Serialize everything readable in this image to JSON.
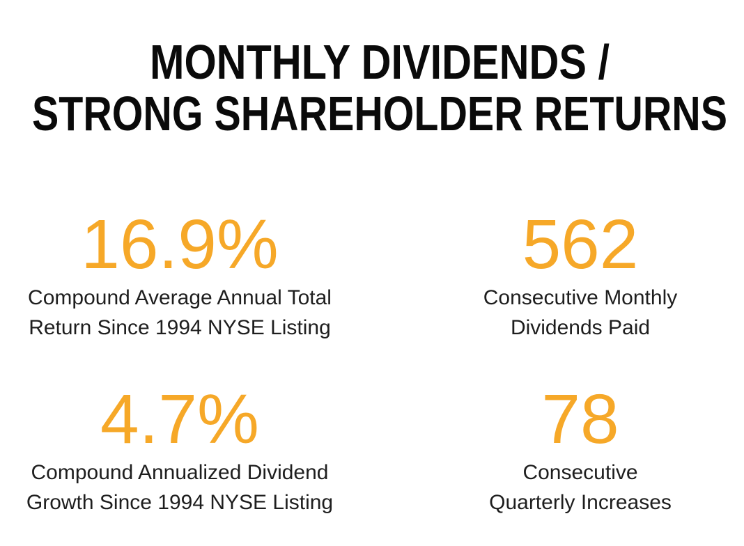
{
  "header": {
    "title": [
      "MONTHLY DIVIDENDS /",
      "STRONG SHAREHOLDER RETURNS"
    ]
  },
  "stats": [
    {
      "value": "16.9%",
      "label": [
        "Compound Average Annual Total",
        "Return Since 1994 NYSE Listing"
      ]
    },
    {
      "value": "562",
      "label": [
        "Consecutive Monthly",
        "Dividends Paid"
      ]
    },
    {
      "value": "4.7%",
      "label": [
        "Compound Annualized Dividend",
        "Growth Since 1994 NYSE Listing"
      ]
    },
    {
      "value": "78",
      "label": [
        "Consecutive",
        "Quarterly Increases"
      ]
    }
  ]
}
